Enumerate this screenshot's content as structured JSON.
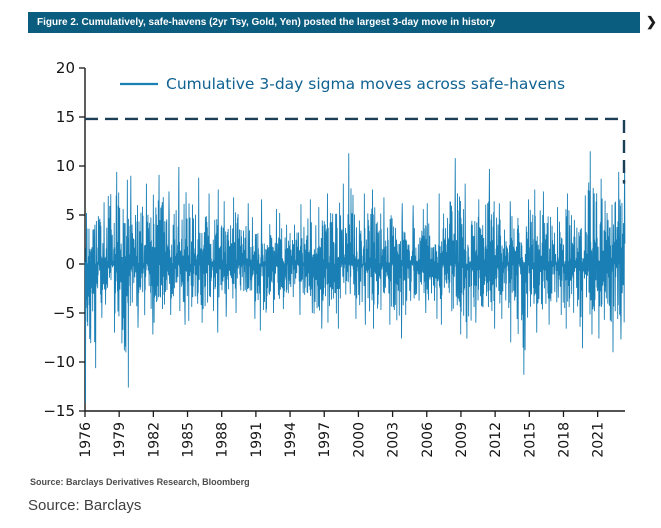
{
  "header": {
    "title": "Figure 2. Cumulatively, safe-havens (2yr Tsy, Gold, Yen) posted the largest 3-day move in history",
    "next_arrow": "❯"
  },
  "footer": {
    "source_note": "Source: Barclays Derivatives Research, Bloomberg",
    "source_caption": "Source: Barclays"
  },
  "colors": {
    "header_bg": "#0b5d80",
    "series": "#1a7fb5",
    "dashed": "#1b3f57",
    "legend_text": "#0f6292",
    "axis": "#1a1a1a"
  },
  "chart_data": {
    "type": "line",
    "title": "Cumulative 3-day sigma moves across safe-havens",
    "xlabel": "",
    "ylabel": "",
    "x_range": [
      1976,
      2023.4
    ],
    "x_ticks": [
      1976,
      1979,
      1982,
      1985,
      1988,
      1991,
      1994,
      1997,
      2000,
      2003,
      2006,
      2009,
      2012,
      2015,
      2018,
      2021
    ],
    "ylim": [
      -15,
      20
    ],
    "y_ticks": [
      -15,
      -10,
      -5,
      0,
      5,
      10,
      15,
      20
    ],
    "grid": false,
    "legend_position": "top-inside",
    "reference_line": {
      "value": 14.8,
      "style": "dashed",
      "drop_to": 8.2
    },
    "yearly_envelope": [
      [
        1976,
        5.2,
        -14.1
      ],
      [
        1977,
        6.3,
        -5.5
      ],
      [
        1978,
        9.4,
        -7.0
      ],
      [
        1979,
        8.6,
        -12.6
      ],
      [
        1980,
        9.0,
        -6.5
      ],
      [
        1981,
        8.2,
        -7.2
      ],
      [
        1982,
        9.1,
        -6.0
      ],
      [
        1983,
        7.4,
        -5.2
      ],
      [
        1984,
        9.9,
        -6.2
      ],
      [
        1985,
        8.8,
        -5.8
      ],
      [
        1986,
        7.2,
        -6.0
      ],
      [
        1987,
        7.6,
        -7.0
      ],
      [
        1988,
        6.4,
        -5.4
      ],
      [
        1989,
        6.8,
        -5.0
      ],
      [
        1990,
        6.2,
        -5.6
      ],
      [
        1991,
        6.6,
        -6.8
      ],
      [
        1992,
        5.6,
        -5.0
      ],
      [
        1993,
        5.2,
        -4.6
      ],
      [
        1994,
        6.1,
        -5.2
      ],
      [
        1995,
        6.6,
        -5.0
      ],
      [
        1996,
        5.8,
        -6.6
      ],
      [
        1997,
        7.2,
        -6.0
      ],
      [
        1998,
        8.2,
        -6.6
      ],
      [
        1999,
        11.3,
        -5.6
      ],
      [
        2000,
        7.2,
        -6.2
      ],
      [
        2001,
        7.6,
        -6.6
      ],
      [
        2002,
        6.8,
        -6.2
      ],
      [
        2003,
        6.2,
        -7.6
      ],
      [
        2004,
        6.0,
        -5.2
      ],
      [
        2005,
        5.6,
        -5.0
      ],
      [
        2006,
        6.2,
        -5.6
      ],
      [
        2007,
        7.2,
        -6.2
      ],
      [
        2008,
        10.8,
        -7.2
      ],
      [
        2009,
        8.2,
        -7.6
      ],
      [
        2010,
        6.6,
        -6.0
      ],
      [
        2011,
        9.7,
        -6.6
      ],
      [
        2012,
        6.2,
        -5.6
      ],
      [
        2013,
        6.4,
        -8.0
      ],
      [
        2014,
        6.6,
        -11.3
      ],
      [
        2015,
        7.6,
        -7.0
      ],
      [
        2016,
        7.4,
        -6.2
      ],
      [
        2017,
        5.8,
        -5.2
      ],
      [
        2018,
        7.2,
        -6.6
      ],
      [
        2019,
        7.0,
        -8.6
      ],
      [
        2020,
        11.5,
        -7.2
      ],
      [
        2021,
        8.7,
        -7.6
      ],
      [
        2022,
        9.4,
        -9.0
      ],
      [
        2023,
        9.9,
        -7.7
      ]
    ]
  }
}
